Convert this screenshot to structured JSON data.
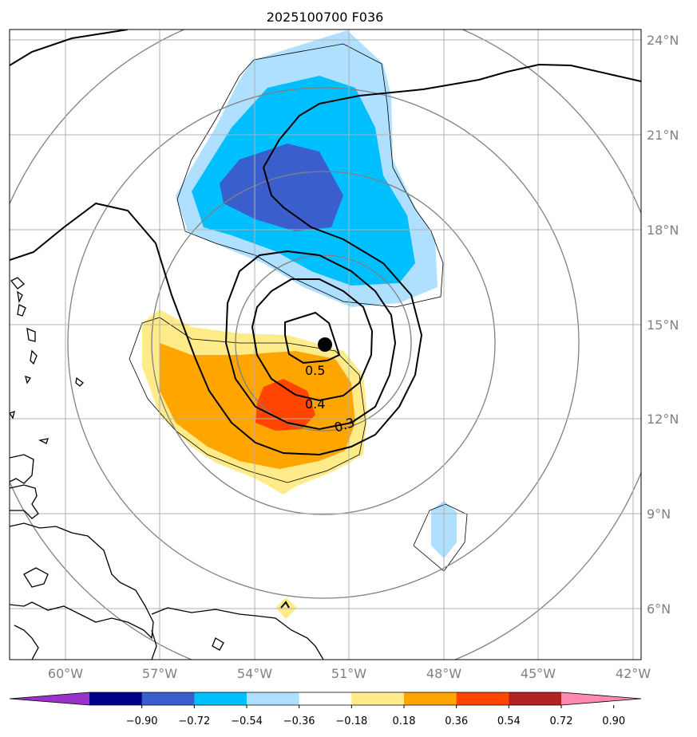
{
  "title": "2025100700 F036",
  "lat_ticks": [
    "24°N",
    "21°N",
    "18°N",
    "15°N",
    "12°N",
    "9°N",
    "6°N"
  ],
  "lon_ticks": [
    "60°W",
    "57°W",
    "54°W",
    "51°W",
    "48°W",
    "45°W",
    "42°W"
  ],
  "colorbar": {
    "labels": [
      "−0.90",
      "−0.72",
      "−0.54",
      "−0.36",
      "−0.18",
      "0.18",
      "0.36",
      "0.54",
      "0.72",
      "0.90"
    ],
    "colors": [
      "#9932cc",
      "#00008b",
      "#3a5fcd",
      "#00bfff",
      "#b0e0ff",
      "#ffffff",
      "#ffeb8a",
      "#ffa500",
      "#ff4500",
      "#b22222",
      "#ff88b0"
    ]
  },
  "contour_labels": [
    "0.5",
    "0.4",
    "0.3"
  ],
  "center_marker": "storm-center"
}
